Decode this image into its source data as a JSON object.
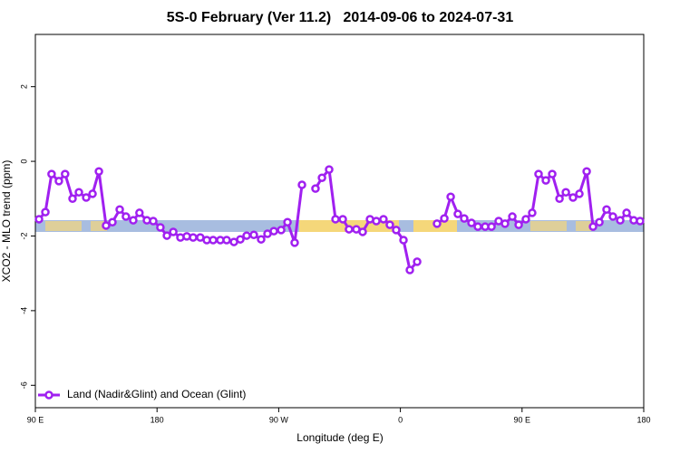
{
  "chart_data": {
    "type": "line",
    "title": "5S-0 February (Ver 11.2)   2014-09-06 to 2024-07-31",
    "x_label": "Longitude (deg E)",
    "y_label": "XCO2 - MLO trend (ppm)",
    "xlim": [
      90,
      540
    ],
    "ylim": [
      -6.6,
      3.4
    ],
    "xticks": [
      {
        "value": 90,
        "label": "90 E"
      },
      {
        "value": 180,
        "label": "180"
      },
      {
        "value": 270,
        "label": "90 W"
      },
      {
        "value": 360,
        "label": "0"
      },
      {
        "value": 450,
        "label": "90 E"
      },
      {
        "value": 540,
        "label": "180"
      }
    ],
    "yticks": [
      -6,
      -4,
      -2,
      0,
      2
    ],
    "legend": "lower left",
    "series": [
      {
        "name": "Land (Nadir&Glint) and Ocean (Glint)",
        "color": "#a020f0",
        "x": [
          92.7,
          97.4,
          102,
          107.4,
          112,
          117.5,
          122.2,
          127.6,
          132.3,
          137,
          142.3,
          147,
          152.4,
          157,
          162.4,
          167,
          172.5,
          177.2,
          182.5,
          187.3,
          192,
          197.3,
          202,
          206.7,
          212,
          216.8,
          221.5,
          226.8,
          231.5,
          236.9,
          241.6,
          246.3,
          251.6,
          257,
          261.7,
          266.4,
          271.8,
          276.5,
          281.8,
          287.2,
          292.2,
          297.2,
          302,
          307.3,
          312,
          317.4,
          322,
          327.4,
          332.1,
          337.5,
          342.2,
          347.5,
          352.2,
          356.9,
          362.3,
          367,
          372.4,
          377.4,
          382.4,
          387.1,
          392.5,
          397.2,
          402.5,
          407.2,
          412.6,
          417.3,
          422.7,
          427.4,
          432.7,
          437.4,
          442.8,
          447.5,
          452.8,
          457.5,
          462.2,
          467.6,
          472.3,
          477.7,
          482.4,
          487.7,
          492.4,
          497.8,
          502.5,
          507.2,
          512.5,
          517.2,
          522.6,
          527.3,
          532.6,
          537.3
        ],
        "values": [
          -1.55,
          -1.36,
          -0.34,
          -0.53,
          -0.34,
          -1.0,
          -0.83,
          -0.97,
          -0.87,
          -0.27,
          -1.72,
          -1.63,
          -1.29,
          -1.48,
          -1.58,
          -1.38,
          -1.58,
          -1.6,
          -1.77,
          -1.99,
          -1.89,
          -2.04,
          -2.01,
          -2.04,
          -2.04,
          -2.11,
          -2.11,
          -2.11,
          -2.11,
          -2.16,
          -2.09,
          -1.99,
          -1.97,
          -2.09,
          -1.94,
          -1.87,
          -1.84,
          -1.63,
          -2.18,
          -0.63,
          null,
          -0.73,
          -0.44,
          -0.22,
          -1.55,
          -1.55,
          -1.82,
          -1.82,
          -1.89,
          -1.55,
          -1.6,
          -1.55,
          -1.7,
          -1.84,
          -2.11,
          -2.91,
          -2.69,
          null,
          null,
          -1.67,
          -1.53,
          -0.95,
          -1.41,
          -1.53,
          -1.65,
          -1.75,
          -1.75,
          -1.75,
          -1.6,
          -1.67,
          -1.48,
          -1.7,
          -1.55,
          -1.38,
          -0.34,
          -0.51,
          -0.34,
          -1.0,
          -0.83,
          -0.97,
          -0.87,
          -0.27,
          -1.75,
          -1.63,
          -1.29,
          -1.48,
          -1.58,
          -1.38,
          -1.58,
          -1.6
        ]
      }
    ]
  }
}
